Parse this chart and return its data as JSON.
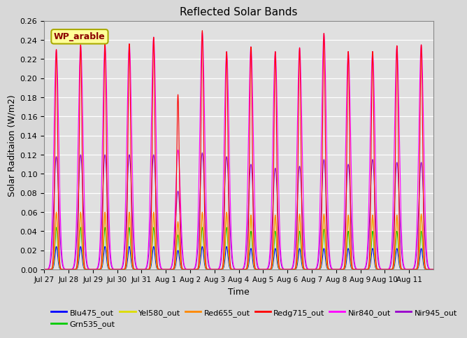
{
  "title": "Reflected Solar Bands",
  "xlabel": "Time",
  "ylabel": "Solar Raditaion (W/m2)",
  "ylim": [
    0.0,
    0.26
  ],
  "yticks": [
    0.0,
    0.02,
    0.04,
    0.06,
    0.08,
    0.1,
    0.12,
    0.14,
    0.16,
    0.18,
    0.2,
    0.22,
    0.24,
    0.26
  ],
  "fig_bg_color": "#d8d8d8",
  "plot_bg_color": "#e0e0e0",
  "annotation_text": "WP_arable",
  "annotation_color": "#8B0000",
  "annotation_bg": "#ffff99",
  "annotation_border": "#aaaa00",
  "series": [
    {
      "name": "Blu475_out",
      "color": "#0000ff"
    },
    {
      "name": "Grn535_out",
      "color": "#00cc00"
    },
    {
      "name": "Yel580_out",
      "color": "#dddd00"
    },
    {
      "name": "Red655_out",
      "color": "#ff8800"
    },
    {
      "name": "Redg715_out",
      "color": "#ff0000"
    },
    {
      "name": "Nir840_out",
      "color": "#ff00ff"
    },
    {
      "name": "Nir945_out",
      "color": "#9900cc"
    }
  ],
  "xtick_labels": [
    "Jul 27",
    "Jul 28",
    "Jul 29",
    "Jul 30",
    "Jul 31",
    "Aug 1",
    "Aug 2",
    "Aug 3",
    "Aug 4",
    "Aug 5",
    "Aug 6",
    "Aug 7",
    "Aug 8",
    "Aug 9",
    "Aug 10",
    "Aug 11"
  ],
  "n_days": 16,
  "blu_peaks": [
    0.024,
    0.024,
    0.024,
    0.024,
    0.024,
    0.02,
    0.024,
    0.024,
    0.022,
    0.022,
    0.022,
    0.022,
    0.022,
    0.022,
    0.022,
    0.022
  ],
  "grn_peaks": [
    0.044,
    0.044,
    0.044,
    0.044,
    0.044,
    0.036,
    0.044,
    0.044,
    0.04,
    0.04,
    0.04,
    0.042,
    0.04,
    0.04,
    0.04,
    0.04
  ],
  "yel_peaks": [
    0.058,
    0.058,
    0.058,
    0.058,
    0.058,
    0.048,
    0.058,
    0.058,
    0.055,
    0.055,
    0.056,
    0.056,
    0.055,
    0.055,
    0.055,
    0.056
  ],
  "red_peaks": [
    0.06,
    0.06,
    0.06,
    0.06,
    0.06,
    0.05,
    0.06,
    0.06,
    0.057,
    0.057,
    0.058,
    0.058,
    0.057,
    0.057,
    0.057,
    0.058
  ],
  "redg_peaks": [
    0.23,
    0.235,
    0.236,
    0.236,
    0.243,
    0.183,
    0.25,
    0.228,
    0.233,
    0.228,
    0.232,
    0.247,
    0.228,
    0.228,
    0.234,
    0.235
  ],
  "nir840_peaks": [
    0.23,
    0.235,
    0.236,
    0.236,
    0.243,
    0.125,
    0.248,
    0.228,
    0.233,
    0.228,
    0.232,
    0.247,
    0.228,
    0.228,
    0.234,
    0.235
  ],
  "nir945_peaks": [
    0.118,
    0.12,
    0.12,
    0.12,
    0.12,
    0.082,
    0.122,
    0.118,
    0.11,
    0.106,
    0.108,
    0.115,
    0.11,
    0.115,
    0.112,
    0.112
  ],
  "sigma_narrow": 0.055,
  "sigma_wide": 0.1,
  "sigma_mid": 0.075
}
